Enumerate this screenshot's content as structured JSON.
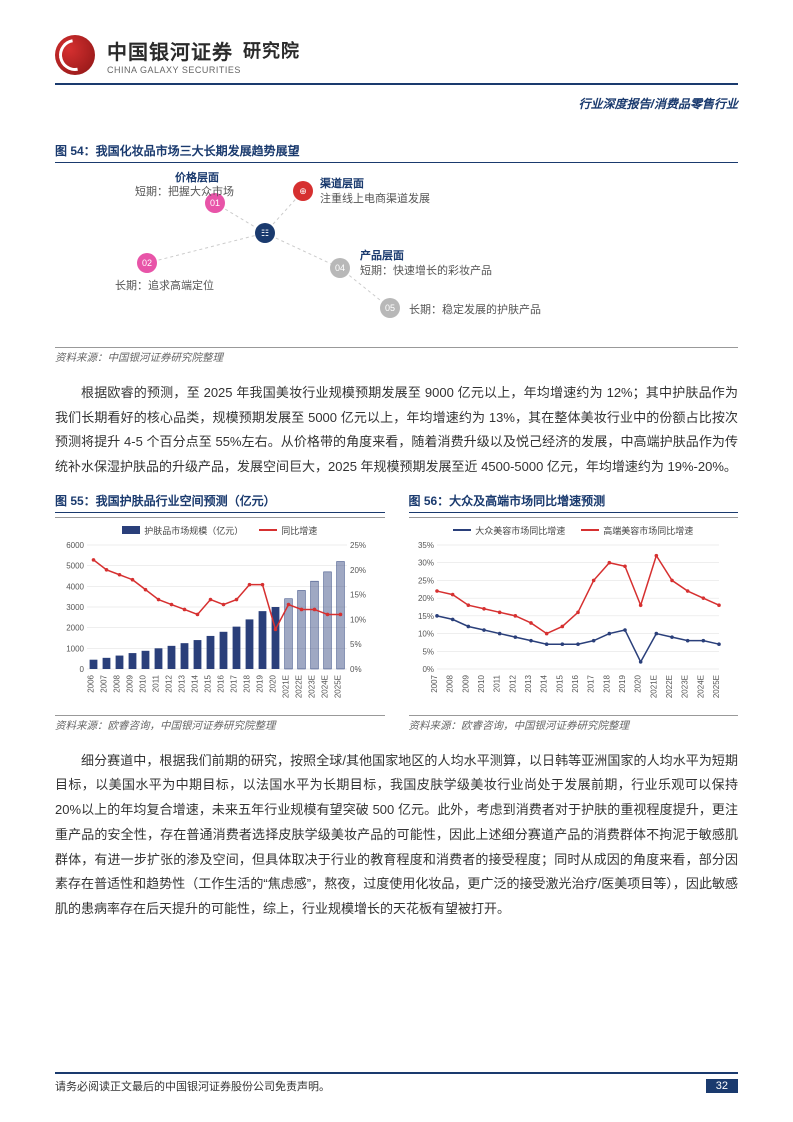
{
  "header": {
    "brand_cn": "中国银河证券",
    "brand_en": "CHINA GALAXY SECURITIES",
    "institute": "研究院",
    "breadcrumb": "行业深度报告/消费品零售行业"
  },
  "fig54": {
    "title": "图 54：我国化妆品市场三大长期发展趋势展望",
    "source": "资料来源：中国银河证券研究院整理",
    "nodes": {
      "price_title": "价格层面",
      "price_short": "短期：把握大众市场",
      "price_long": "长期：追求高端定位",
      "channel_title": "渠道层面",
      "channel_text": "注重线上电商渠道发展",
      "product_title": "产品层面",
      "product_short": "短期：快速增长的彩妆产品",
      "product_long": "长期：稳定发展的护肤产品"
    },
    "colors": {
      "red": "#d63030",
      "magenta": "#e854a8",
      "navy": "#1a3a6e",
      "gray": "#b8b8b8"
    }
  },
  "body1": "根据欧睿的预测，至 2025 年我国美妆行业规模预期发展至 9000 亿元以上，年均增速约为 12%；其中护肤品作为我们长期看好的核心品类，规模预期发展至 5000 亿元以上，年均增速约为 13%，其在整体美妆行业中的份额占比按次预测将提升 4-5 个百分点至 55%左右。从价格带的角度来看，随着消费升级以及悦己经济的发展，中高端护肤品作为传统补水保湿护肤品的升级产品，发展空间巨大，2025 年规模预期发展至近 4500-5000 亿元，年均增速约为 19%-20%。",
  "fig55": {
    "title": "图 55：我国护肤品行业空间预测（亿元）",
    "source": "资料来源：欧睿咨询，中国银河证券研究院整理",
    "legend": {
      "bars": "护肤品市场规模（亿元）",
      "line": "同比增速"
    },
    "categories": [
      "2006",
      "2007",
      "2008",
      "2009",
      "2010",
      "2011",
      "2012",
      "2013",
      "2014",
      "2015",
      "2016",
      "2017",
      "2018",
      "2019",
      "2020",
      "2021E",
      "2022E",
      "2023E",
      "2024E",
      "2025E"
    ],
    "bar_values": [
      450,
      540,
      650,
      770,
      880,
      1000,
      1120,
      1250,
      1400,
      1600,
      1800,
      2050,
      2400,
      2800,
      3000,
      3400,
      3800,
      4250,
      4700,
      5200
    ],
    "line_values": [
      22,
      20,
      19,
      18,
      16,
      14,
      13,
      12,
      11,
      14,
      13,
      14,
      17,
      17,
      8,
      13,
      12,
      12,
      11,
      11
    ],
    "bar_color": "#2a3f7a",
    "line_color": "#d63030",
    "y_left_max": 6000,
    "y_left_step": 1000,
    "y_right_max": 25,
    "y_right_step": 5
  },
  "fig56": {
    "title": "图 56：大众及高端市场同比增速预测",
    "source": "资料来源：欧睿咨询，中国银河证券研究院整理",
    "legend": {
      "mass": "大众美容市场同比增速",
      "prestige": "高端美容市场同比增速"
    },
    "categories": [
      "2007",
      "2008",
      "2009",
      "2010",
      "2011",
      "2012",
      "2013",
      "2014",
      "2015",
      "2016",
      "2017",
      "2018",
      "2019",
      "2020",
      "2021E",
      "2022E",
      "2023E",
      "2024E",
      "2025E"
    ],
    "mass_values": [
      15,
      14,
      12,
      11,
      10,
      9,
      8,
      7,
      7,
      7,
      8,
      10,
      11,
      2,
      10,
      9,
      8,
      8,
      7
    ],
    "prestige_values": [
      22,
      21,
      18,
      17,
      16,
      15,
      13,
      10,
      12,
      16,
      25,
      30,
      29,
      18,
      32,
      25,
      22,
      20,
      18
    ],
    "mass_color": "#2a3f7a",
    "prestige_color": "#d63030",
    "y_max": 35,
    "y_step": 5
  },
  "body2": "细分赛道中，根据我们前期的研究，按照全球/其他国家地区的人均水平测算，以日韩等亚洲国家的人均水平为短期目标，以美国水平为中期目标，以法国水平为长期目标，我国皮肤学级美妆行业尚处于发展前期，行业乐观可以保持 20%以上的年均复合增速，未来五年行业规模有望突破 500 亿元。此外，考虑到消费者对于护肤的重视程度提升，更注重产品的安全性，存在普通消费者选择皮肤学级美妆产品的可能性，因此上述细分赛道产品的消费群体不拘泥于敏感肌群体，有进一步扩张的渗及空间，但具体取决于行业的教育程度和消费者的接受程度；同时从成因的角度来看，部分因素存在普适性和趋势性（工作生活的“焦虑感”，熬夜，过度使用化妆品，更广泛的接受激光治疗/医美项目等），因此敏感肌的患病率存在后天提升的可能性，综上，行业规模增长的天花板有望被打开。",
  "footer": {
    "disclaimer": "请务必阅读正文最后的中国银河证券股份公司免责声明。",
    "page": "32"
  }
}
